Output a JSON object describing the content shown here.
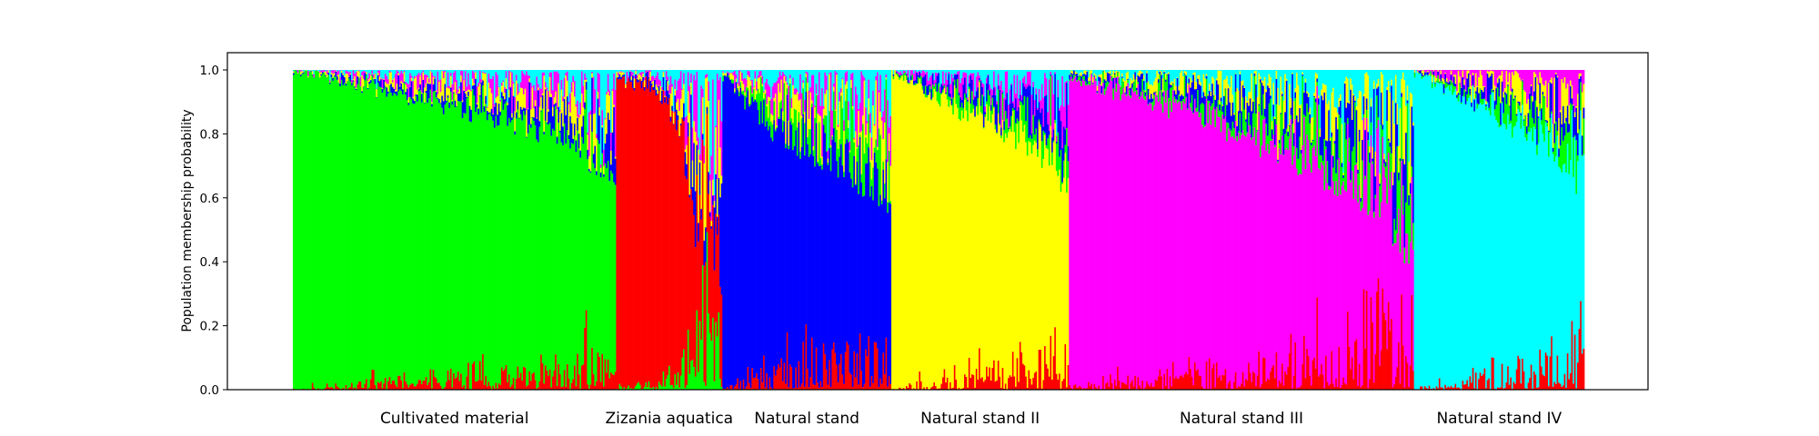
{
  "chart_data": {
    "type": "bar",
    "stacked": true,
    "title": "",
    "xlabel": "",
    "ylabel": "Population membership probability",
    "ylim": [
      0.0,
      1.0
    ],
    "yticks": [
      "0.0",
      "0.2",
      "0.4",
      "0.6",
      "0.8",
      "1.0"
    ],
    "grid": false,
    "legend": "none",
    "colors": {
      "green": "#00ff00",
      "red": "#ff0000",
      "blue": "#0000ff",
      "yellow": "#ffff00",
      "magenta": "#ff00ff",
      "cyan": "#00ffff"
    },
    "groups": [
      {
        "label": "Cultivated material",
        "n": 222,
        "dominant": "green",
        "profile": [
          [
            0.0,
            1.0
          ],
          [
            0.3,
            0.91
          ],
          [
            0.6,
            0.84
          ],
          [
            0.85,
            0.75
          ],
          [
            1.0,
            0.6
          ]
        ]
      },
      {
        "label": "Zizania aquatica",
        "n": 73,
        "dominant": "red",
        "profile": [
          [
            0.0,
            0.97
          ],
          [
            0.35,
            0.93
          ],
          [
            0.6,
            0.8
          ],
          [
            0.75,
            0.42
          ],
          [
            1.0,
            0.3
          ]
        ]
      },
      {
        "label": "Natural stand",
        "n": 116,
        "dominant": "blue",
        "profile": [
          [
            0.0,
            0.98
          ],
          [
            0.3,
            0.78
          ],
          [
            0.6,
            0.68
          ],
          [
            1.0,
            0.55
          ]
        ]
      },
      {
        "label": "Natural stand II",
        "n": 122,
        "dominant": "yellow",
        "profile": [
          [
            0.0,
            0.99
          ],
          [
            0.4,
            0.85
          ],
          [
            0.8,
            0.72
          ],
          [
            1.0,
            0.6
          ]
        ]
      },
      {
        "label": "Natural stand III",
        "n": 237,
        "dominant": "magenta",
        "profile": [
          [
            0.0,
            0.97
          ],
          [
            0.2,
            0.9
          ],
          [
            0.5,
            0.77
          ],
          [
            0.8,
            0.6
          ],
          [
            1.0,
            0.37
          ]
        ]
      },
      {
        "label": "Natural stand IV",
        "n": 117,
        "dominant": "cyan",
        "profile": [
          [
            0.0,
            0.99
          ],
          [
            0.4,
            0.86
          ],
          [
            0.8,
            0.72
          ],
          [
            1.0,
            0.6
          ]
        ]
      }
    ]
  }
}
